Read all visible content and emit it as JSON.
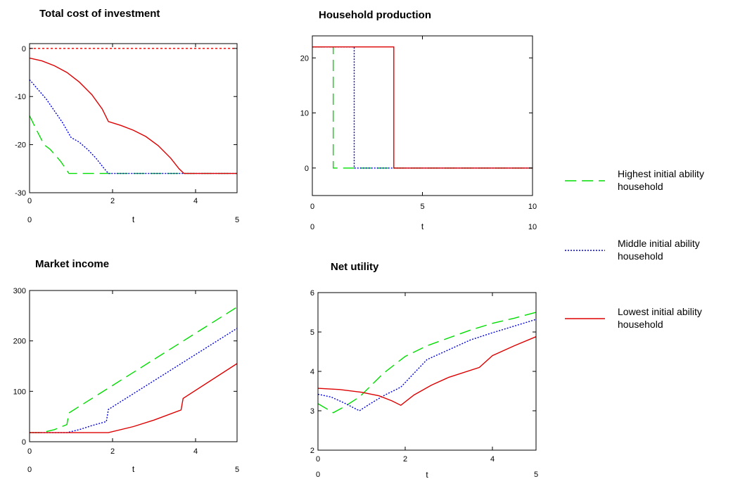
{
  "chart_data": [
    {
      "type": "line",
      "title": "Total cost of investment",
      "xlabel": "t",
      "xlim": [
        0,
        5
      ],
      "ylim": [
        -30,
        1
      ],
      "xticks": [
        0,
        2,
        4
      ],
      "yticks": [
        0,
        -10,
        -20,
        -30
      ],
      "range_labels": [
        "0",
        "5"
      ],
      "series": [
        {
          "name": "Highest initial ability household",
          "color": "#00dd00",
          "dash": "16,8",
          "points": [
            [
              0,
              -14
            ],
            [
              0.2,
              -17.5
            ],
            [
              0.35,
              -20
            ],
            [
              0.5,
              -21
            ],
            [
              0.75,
              -23.5
            ],
            [
              0.95,
              -26
            ],
            [
              1.5,
              -26
            ],
            [
              2,
              -26
            ],
            [
              3,
              -26
            ],
            [
              4,
              -26
            ],
            [
              5,
              -26
            ]
          ]
        },
        {
          "name": "Middle initial ability household",
          "color": "#0000dd",
          "dash": "2,2",
          "points": [
            [
              0,
              -6.5
            ],
            [
              0.2,
              -8.5
            ],
            [
              0.4,
              -10.5
            ],
            [
              0.6,
              -13
            ],
            [
              0.8,
              -15.5
            ],
            [
              1,
              -18.5
            ],
            [
              1.2,
              -19.5
            ],
            [
              1.4,
              -21
            ],
            [
              1.6,
              -22.8
            ],
            [
              1.8,
              -25
            ],
            [
              1.9,
              -26
            ],
            [
              2.5,
              -26
            ],
            [
              3,
              -26
            ],
            [
              4,
              -26
            ],
            [
              5,
              -26
            ]
          ]
        },
        {
          "name": "Lowest initial ability household",
          "color": "#dd0000",
          "dash": "",
          "points": [
            [
              0,
              -2
            ],
            [
              0.3,
              -2.6
            ],
            [
              0.6,
              -3.6
            ],
            [
              0.9,
              -5
            ],
            [
              1.2,
              -7
            ],
            [
              1.5,
              -9.6
            ],
            [
              1.75,
              -12.6
            ],
            [
              1.9,
              -15.2
            ],
            [
              2.2,
              -16
            ],
            [
              2.5,
              -17
            ],
            [
              2.8,
              -18.3
            ],
            [
              3.1,
              -20.2
            ],
            [
              3.4,
              -22.8
            ],
            [
              3.6,
              -25
            ],
            [
              3.72,
              -26
            ],
            [
              4,
              -26
            ],
            [
              5,
              -26
            ]
          ]
        },
        {
          "name": "",
          "color": "#dd0000",
          "dash": "3,3",
          "points": [
            [
              0,
              0
            ],
            [
              5,
              0
            ]
          ]
        }
      ]
    },
    {
      "type": "line",
      "title": "Household production",
      "xlabel": "t",
      "xlim": [
        0,
        10
      ],
      "ylim": [
        -5,
        24
      ],
      "xticks": [
        0,
        5,
        10
      ],
      "yticks": [
        20,
        10,
        0
      ],
      "range_labels": [
        "0",
        "10"
      ],
      "series": [
        {
          "name": "Highest initial ability household",
          "color": "#00dd00",
          "dash": "16,8",
          "points": [
            [
              0,
              22
            ],
            [
              0.95,
              22
            ],
            [
              0.95,
              0
            ],
            [
              10,
              0
            ]
          ]
        },
        {
          "name": "Middle initial ability household",
          "color": "#0000dd",
          "dash": "2,2",
          "points": [
            [
              0,
              22
            ],
            [
              1.9,
              22
            ],
            [
              1.9,
              0
            ],
            [
              10,
              0
            ]
          ]
        },
        {
          "name": "Lowest initial ability household",
          "color": "#dd0000",
          "dash": "",
          "points": [
            [
              0,
              22
            ],
            [
              3.7,
              22
            ],
            [
              3.7,
              0
            ],
            [
              10,
              0
            ]
          ]
        }
      ]
    },
    {
      "type": "line",
      "title": "Market income",
      "xlabel": "t",
      "xlim": [
        0,
        5
      ],
      "ylim": [
        0,
        300
      ],
      "xticks": [
        0,
        2,
        4
      ],
      "yticks": [
        0,
        100,
        200,
        300
      ],
      "range_labels": [
        "0",
        "5"
      ],
      "series": [
        {
          "name": "Highest initial ability household",
          "color": "#00dd00",
          "dash": "16,8",
          "points": [
            [
              0,
              18
            ],
            [
              0.3,
              18
            ],
            [
              0.6,
              24
            ],
            [
              0.9,
              34
            ],
            [
              0.95,
              57
            ],
            [
              5,
              267
            ]
          ]
        },
        {
          "name": "Middle initial ability household",
          "color": "#0000dd",
          "dash": "2,2",
          "points": [
            [
              0,
              18
            ],
            [
              0.9,
              18
            ],
            [
              1.2,
              24
            ],
            [
              1.5,
              32
            ],
            [
              1.85,
              40
            ],
            [
              1.9,
              64
            ],
            [
              5,
              225
            ]
          ]
        },
        {
          "name": "Lowest initial ability household",
          "color": "#dd0000",
          "dash": "",
          "points": [
            [
              0,
              18
            ],
            [
              1.9,
              18
            ],
            [
              2.5,
              30
            ],
            [
              3,
              43
            ],
            [
              3.65,
              63
            ],
            [
              3.7,
              86
            ],
            [
              5,
              155
            ]
          ]
        }
      ]
    },
    {
      "type": "line",
      "title": "Net utility",
      "xlabel": "t",
      "xlim": [
        0,
        5
      ],
      "ylim": [
        2,
        6
      ],
      "xticks": [
        0,
        2,
        4
      ],
      "yticks": [
        2,
        3,
        4,
        5,
        6
      ],
      "range_labels": [
        "0",
        "5"
      ],
      "series": [
        {
          "name": "Highest initial ability household",
          "color": "#00dd00",
          "dash": "16,8",
          "points": [
            [
              0,
              3.18
            ],
            [
              0.2,
              3.05
            ],
            [
              0.35,
              2.95
            ],
            [
              0.6,
              3.1
            ],
            [
              0.95,
              3.35
            ],
            [
              1.2,
              3.62
            ],
            [
              1.5,
              3.95
            ],
            [
              2,
              4.38
            ],
            [
              2.5,
              4.65
            ],
            [
              3,
              4.85
            ],
            [
              3.5,
              5.05
            ],
            [
              4,
              5.22
            ],
            [
              4.5,
              5.35
            ],
            [
              5,
              5.5
            ]
          ]
        },
        {
          "name": "Middle initial ability household",
          "color": "#0000dd",
          "dash": "2,2",
          "points": [
            [
              0,
              3.42
            ],
            [
              0.3,
              3.35
            ],
            [
              0.6,
              3.2
            ],
            [
              0.95,
              3.0
            ],
            [
              1.2,
              3.18
            ],
            [
              1.5,
              3.38
            ],
            [
              1.9,
              3.6
            ],
            [
              2.2,
              3.95
            ],
            [
              2.5,
              4.3
            ],
            [
              3,
              4.55
            ],
            [
              3.5,
              4.8
            ],
            [
              4,
              4.98
            ],
            [
              4.5,
              5.15
            ],
            [
              5,
              5.32
            ]
          ]
        },
        {
          "name": "Lowest initial ability household",
          "color": "#dd0000",
          "dash": "",
          "points": [
            [
              0,
              3.57
            ],
            [
              0.5,
              3.54
            ],
            [
              1,
              3.47
            ],
            [
              1.4,
              3.38
            ],
            [
              1.7,
              3.25
            ],
            [
              1.9,
              3.14
            ],
            [
              2.2,
              3.4
            ],
            [
              2.6,
              3.65
            ],
            [
              3,
              3.85
            ],
            [
              3.7,
              4.1
            ],
            [
              4,
              4.4
            ],
            [
              4.5,
              4.65
            ],
            [
              5,
              4.88
            ]
          ]
        }
      ]
    }
  ],
  "legend": [
    {
      "line1": "Highest initial ability",
      "line2": "household",
      "color": "#00dd00",
      "dash": "16,8"
    },
    {
      "line1": "Middle initial ability",
      "line2": "household",
      "color": "#0000dd",
      "dash": "2,2"
    },
    {
      "line1": "Lowest initial ability",
      "line2": "household",
      "color": "#dd0000",
      "dash": ""
    }
  ]
}
